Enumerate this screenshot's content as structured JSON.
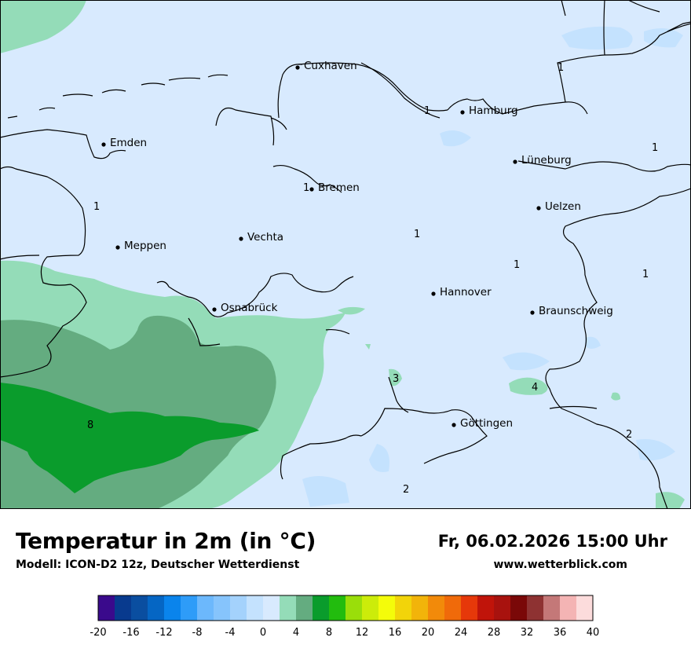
{
  "title": "Temperatur in 2m (in °C)",
  "model": "Modell: ICON-D2 12z, Deutscher Wetterdienst",
  "datetime": "Fr, 06.02.2026 15:00 Uhr",
  "website": "www.wetterblick.com",
  "cities": [
    {
      "name": "Cuxhaven"
    },
    {
      "name": "Hamburg"
    },
    {
      "name": "Emden"
    },
    {
      "name": "Lüneburg"
    },
    {
      "name": "Bremen"
    },
    {
      "name": "Uelzen"
    },
    {
      "name": "Vechta"
    },
    {
      "name": "Meppen"
    },
    {
      "name": "Hannover"
    },
    {
      "name": "Osnabrück"
    },
    {
      "name": "Braunschweig"
    },
    {
      "name": "Göttingen"
    }
  ],
  "contour_labels": [
    "1",
    "1",
    "1",
    "1",
    "1",
    "1",
    "1",
    "1",
    "3",
    "4",
    "8",
    "2",
    "2"
  ],
  "legend": {
    "ticks": [
      "-20",
      "-16",
      "-12",
      "-8",
      "-4",
      "0",
      "4",
      "8",
      "12",
      "16",
      "20",
      "24",
      "28",
      "32",
      "36",
      "40"
    ],
    "colors": [
      "#3a0a8c",
      "#083a8e",
      "#0a4ea0",
      "#0566c4",
      "#0a84ec",
      "#2e9cf8",
      "#6cb8fc",
      "#86c4fc",
      "#a4d2fc",
      "#c4e2fe",
      "#d8eafe",
      "#94dcb8",
      "#64ac80",
      "#0a9c2c",
      "#22bc0e",
      "#9ade0a",
      "#ccec0a",
      "#f4fc0a",
      "#f2d40a",
      "#f2b40a",
      "#f28a0a",
      "#f06a0a",
      "#e6380a",
      "#c0140a",
      "#a8120e",
      "#7a0808",
      "#8e3232",
      "#c47878",
      "#f4b4b4",
      "#fcdcdc"
    ]
  },
  "palette": {
    "land_cold": "#d8eafe",
    "band_2_4": "#94dcb8",
    "band_4_6": "#64ac80",
    "band_6_8": "#0a9c2c",
    "band_0_2_light": "#c4e2fe"
  }
}
